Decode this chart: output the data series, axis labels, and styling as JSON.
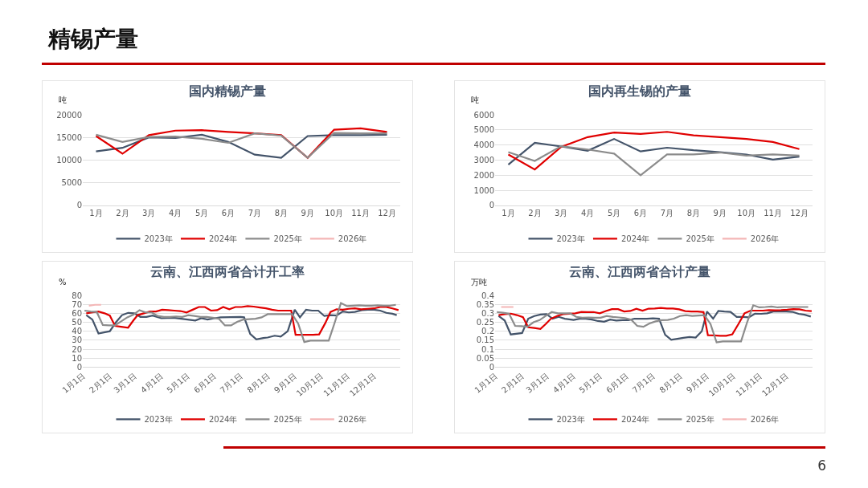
{
  "chart_data": [
    {
      "type": "line",
      "title": "国内精锡产量",
      "ylabel": "吨",
      "annotations": [
        "精锡产量"
      ],
      "categories": [
        "1月",
        "2月",
        "3月",
        "4月",
        "5月",
        "6月",
        "7月",
        "8月",
        "9月",
        "10月",
        "11月",
        "12月"
      ],
      "ylim": [
        0,
        20000
      ],
      "yticks": [
        0,
        5000,
        10000,
        15000,
        20000
      ],
      "grid": "y",
      "legend": "bottom",
      "line_style": "solid",
      "marker": "none",
      "series": [
        {
          "name": "2023年",
          "color": "#44546a",
          "values": [
            11900,
            12700,
            15000,
            14900,
            15600,
            14000,
            11200,
            10500,
            15300,
            15500,
            15500,
            15600
          ]
        },
        {
          "name": "2024年",
          "color": "#e00000",
          "values": [
            15300,
            11400,
            15500,
            16500,
            16600,
            16200,
            15900,
            15500,
            10500,
            16700,
            17000,
            16200
          ]
        },
        {
          "name": "2025年",
          "color": "#8c8c8c",
          "values": [
            15600,
            14000,
            15100,
            15200,
            14700,
            13800,
            15900,
            15400,
            10500,
            16000,
            15900,
            15900
          ]
        },
        {
          "name": "2026年",
          "color": "#f4b6b6",
          "values": [
            null,
            null,
            null,
            null,
            null,
            null,
            null,
            null,
            null,
            null,
            null,
            null
          ]
        }
      ]
    },
    {
      "type": "line",
      "title": "国内再生锡的产量",
      "ylabel": "吨",
      "categories": [
        "1月",
        "2月",
        "3月",
        "4月",
        "5月",
        "6月",
        "7月",
        "8月",
        "9月",
        "10月",
        "11月",
        "12月"
      ],
      "ylim": [
        0,
        6000
      ],
      "yticks": [
        0,
        1000,
        2000,
        3000,
        4000,
        5000,
        6000
      ],
      "grid": "y",
      "legend": "bottom",
      "line_style": "solid",
      "marker": "none",
      "series": [
        {
          "name": "2023年",
          "color": "#44546a",
          "values": [
            2700,
            4150,
            3900,
            3620,
            4400,
            3570,
            3820,
            3650,
            3520,
            3370,
            3030,
            3230
          ]
        },
        {
          "name": "2024年",
          "color": "#e00000",
          "values": [
            3370,
            2380,
            3880,
            4520,
            4820,
            4730,
            4870,
            4640,
            4520,
            4400,
            4200,
            3730
          ]
        },
        {
          "name": "2025年",
          "color": "#8c8c8c",
          "values": [
            3530,
            2940,
            3920,
            3700,
            3430,
            2000,
            3370,
            3370,
            3500,
            3300,
            3370,
            3300
          ]
        },
        {
          "name": "2026年",
          "color": "#f4b6b6",
          "values": [
            null,
            null,
            null,
            null,
            null,
            null,
            null,
            null,
            null,
            null,
            null,
            null
          ]
        }
      ]
    },
    {
      "type": "line",
      "title": "云南、江西两省合计开工率",
      "ylabel": "%",
      "xlim": [
        "--01-01",
        "--12-31"
      ],
      "xticks": [
        {
          "value": "--01-01",
          "label": "1月1日"
        },
        {
          "value": "--02-01",
          "label": "2月1日"
        },
        {
          "value": "--03-01",
          "label": "3月1日"
        },
        {
          "value": "--04-01",
          "label": "4月1日"
        },
        {
          "value": "--05-01",
          "label": "5月1日"
        },
        {
          "value": "--06-01",
          "label": "6月1日"
        },
        {
          "value": "--07-01",
          "label": "7月1日"
        },
        {
          "value": "--08-01",
          "label": "8月1日"
        },
        {
          "value": "--09-01",
          "label": "9月1日"
        },
        {
          "value": "--10-01",
          "label": "10月1日"
        },
        {
          "value": "--11-01",
          "label": "11月1日"
        },
        {
          "value": "--12-01",
          "label": "12月1日"
        }
      ],
      "ylim": [
        0,
        80
      ],
      "yticks": [
        0,
        10,
        20,
        30,
        40,
        50,
        60,
        70,
        80
      ],
      "grid": "y",
      "legend": "bottom",
      "line_style": "solid",
      "marker": "none",
      "series": [
        {
          "name": "2023年",
          "color": "#44546a",
          "x": [
            "--01-05",
            "--01-12",
            "--01-19",
            "--02-01",
            "--02-08",
            "--02-15",
            "--02-22",
            "--03-01",
            "--03-08",
            "--03-15",
            "--03-22",
            "--04-01",
            "--04-15",
            "--05-01",
            "--05-10",
            "--05-17",
            "--05-24",
            "--06-01",
            "--06-08",
            "--07-01",
            "--07-05",
            "--07-12",
            "--07-19",
            "--07-27",
            "--08-01",
            "--08-09",
            "--08-16",
            "--08-24",
            "--09-01",
            "--09-07",
            "--09-14",
            "--09-21",
            "--09-28",
            "--10-05",
            "--10-12",
            "--10-19",
            "--10-26",
            "--11-02",
            "--11-09",
            "--11-17",
            "--11-24",
            "--12-01",
            "--12-08",
            "--12-15",
            "--12-22",
            "--12-27"
          ],
          "values": [
            58,
            53,
            37.5,
            40,
            50,
            58,
            60.5,
            60,
            56,
            56,
            57.5,
            54.5,
            55,
            53,
            52,
            54.5,
            53,
            54.5,
            55.5,
            56,
            55.5,
            37,
            31,
            32.5,
            33,
            35,
            34,
            40,
            64,
            55.5,
            64,
            63,
            63,
            57,
            58,
            57.5,
            62,
            61,
            61.5,
            63.5,
            64,
            64,
            63,
            60.5,
            59.5,
            58
          ]
        },
        {
          "name": "2024年",
          "color": "#e00000",
          "x": [
            "--01-05",
            "--01-12",
            "--01-19",
            "--01-26",
            "--02-01",
            "--02-07",
            "--02-14",
            "--02-22",
            "--02-28",
            "--03-05",
            "--03-12",
            "--03-19",
            "--03-26",
            "--04-02",
            "--04-09",
            "--04-16",
            "--04-23",
            "--04-30",
            "--05-07",
            "--05-14",
            "--05-21",
            "--05-28",
            "--06-04",
            "--06-11",
            "--06-18",
            "--06-25",
            "--07-02",
            "--07-09",
            "--07-16",
            "--07-23",
            "--07-30",
            "--08-06",
            "--08-13",
            "--08-20",
            "--08-28",
            "--09-02",
            "--09-08",
            "--09-15",
            "--09-22",
            "--09-29",
            "--10-06",
            "--10-12",
            "--10-19",
            "--10-26",
            "--11-02",
            "--11-09",
            "--11-16",
            "--11-23",
            "--12-01",
            "--12-08",
            "--12-15",
            "--12-22",
            "--12-29"
          ],
          "values": [
            60,
            61,
            62,
            60,
            57.5,
            46,
            45,
            44,
            52,
            58,
            60,
            62,
            62,
            64,
            63.5,
            63,
            62.5,
            61,
            64,
            67,
            67,
            63,
            63.5,
            67,
            64.5,
            67,
            67,
            68,
            67.5,
            66.5,
            65.5,
            64,
            63,
            63,
            63,
            36,
            36,
            36,
            36,
            36.5,
            49,
            61.5,
            64.5,
            64,
            65,
            65.5,
            64.5,
            65,
            65.5,
            67,
            67,
            65.5,
            63.5
          ]
        },
        {
          "name": "2025年",
          "color": "#8c8c8c",
          "x": [
            "--01-03",
            "--01-10",
            "--01-17",
            "--01-24",
            "--01-31",
            "--02-07",
            "--02-14",
            "--02-21",
            "--02-28",
            "--03-07",
            "--03-14",
            "--03-21",
            "--03-28",
            "--04-04",
            "--04-11",
            "--04-18",
            "--04-25",
            "--05-02",
            "--05-09",
            "--05-16",
            "--05-23",
            "--05-30",
            "--06-06",
            "--06-13",
            "--06-20",
            "--06-27",
            "--07-04",
            "--07-11",
            "--07-18",
            "--07-25",
            "--08-01",
            "--08-08",
            "--08-15",
            "--08-22",
            "--08-29",
            "--09-05",
            "--09-12",
            "--09-19",
            "--09-26",
            "--10-03",
            "--10-10",
            "--10-17",
            "--10-24",
            "--10-31",
            "--11-07",
            "--11-14",
            "--11-21",
            "--11-28",
            "--12-05",
            "--12-12",
            "--12-19",
            "--12-26"
          ],
          "values": [
            63,
            62,
            61.5,
            47,
            46.5,
            46.5,
            51,
            55.5,
            58.5,
            63.5,
            61,
            61,
            57,
            56,
            56,
            56.5,
            56,
            58,
            57,
            56,
            56,
            55,
            54,
            46.5,
            46.5,
            50.5,
            53,
            53.5,
            54,
            55.5,
            59,
            59,
            59,
            59,
            59,
            48.5,
            28,
            29.5,
            29.5,
            29.5,
            29.5,
            50,
            71.5,
            68,
            68.5,
            69,
            68.5,
            68.5,
            69,
            68.5,
            68.5,
            69.5
          ]
        },
        {
          "name": "2026年",
          "color": "#f4b6b6",
          "x": [
            "--01-08",
            "--01-15",
            "--01-22"
          ],
          "values": [
            68.5,
            69.5,
            69.5
          ]
        }
      ]
    },
    {
      "type": "line",
      "title": "云南、江西两省合计产量",
      "ylabel": "万吨",
      "annotations": [
        "6"
      ],
      "xlim": [
        "--01-01",
        "--12-31"
      ],
      "xticks": [
        {
          "value": "--01-01",
          "label": "1月1日"
        },
        {
          "value": "--02-01",
          "label": "2月1日"
        },
        {
          "value": "--03-01",
          "label": "3月1日"
        },
        {
          "value": "--04-01",
          "label": "4月1日"
        },
        {
          "value": "--05-01",
          "label": "5月1日"
        },
        {
          "value": "--06-01",
          "label": "6月1日"
        },
        {
          "value": "--07-01",
          "label": "7月1日"
        },
        {
          "value": "--08-01",
          "label": "8月1日"
        },
        {
          "value": "--09-01",
          "label": "9月1日"
        },
        {
          "value": "--10-01",
          "label": "10月1日"
        },
        {
          "value": "--11-01",
          "label": "11月1日"
        },
        {
          "value": "--12-01",
          "label": "12月1日"
        }
      ],
      "ylim": [
        0,
        0.4
      ],
      "yticks": [
        0,
        0.05,
        0.1,
        0.15,
        0.2,
        0.25,
        0.3,
        0.35,
        0.4
      ],
      "grid": "y",
      "legend": "bottom",
      "line_style": "solid",
      "marker": "none",
      "series": [
        {
          "name": "2023年",
          "color": "#44546a",
          "x": [
            "--01-05",
            "--01-12",
            "--01-19",
            "--02-01",
            "--02-08",
            "--02-15",
            "--02-22",
            "--03-01",
            "--03-08",
            "--03-15",
            "--03-22",
            "--04-01",
            "--04-08",
            "--04-15",
            "--04-22",
            "--04-29",
            "--05-06",
            "--05-13",
            "--05-20",
            "--05-27",
            "--06-03",
            "--06-10",
            "--06-24",
            "--07-01",
            "--07-08",
            "--07-15",
            "--07-22",
            "--07-29",
            "--08-05",
            "--08-12",
            "--08-19",
            "--08-26",
            "--09-01",
            "--09-08",
            "--09-14",
            "--09-21",
            "--09-28",
            "--10-05",
            "--10-12",
            "--10-19",
            "--10-26",
            "--11-02",
            "--11-09",
            "--11-16",
            "--11-23",
            "--12-01",
            "--12-08",
            "--12-15",
            "--12-22",
            "--12-29"
          ],
          "values": [
            0.285,
            0.26,
            0.182,
            0.19,
            0.27,
            0.285,
            0.293,
            0.295,
            0.27,
            0.28,
            0.27,
            0.263,
            0.27,
            0.27,
            0.265,
            0.257,
            0.253,
            0.265,
            0.26,
            0.262,
            0.262,
            0.27,
            0.27,
            0.272,
            0.27,
            0.18,
            0.152,
            0.158,
            0.163,
            0.168,
            0.165,
            0.2,
            0.31,
            0.27,
            0.313,
            0.31,
            0.308,
            0.28,
            0.28,
            0.278,
            0.298,
            0.297,
            0.3,
            0.31,
            0.31,
            0.31,
            0.308,
            0.297,
            0.292,
            0.282
          ]
        },
        {
          "name": "2024年",
          "color": "#e00000",
          "x": [
            "--01-05",
            "--01-12",
            "--01-19",
            "--01-26",
            "--02-02",
            "--02-08",
            "--02-15",
            "--02-22",
            "--02-28",
            "--03-06",
            "--03-13",
            "--03-20",
            "--03-27",
            "--04-03",
            "--04-10",
            "--04-17",
            "--04-24",
            "--05-01",
            "--05-08",
            "--05-15",
            "--05-22",
            "--05-29",
            "--06-05",
            "--06-12",
            "--06-19",
            "--06-26",
            "--07-03",
            "--07-10",
            "--07-17",
            "--07-24",
            "--07-31",
            "--08-07",
            "--08-14",
            "--08-21",
            "--08-28",
            "--09-02",
            "--09-09",
            "--09-16",
            "--09-23",
            "--09-30",
            "--10-07",
            "--10-14",
            "--10-21",
            "--10-28",
            "--11-04",
            "--11-11",
            "--11-18",
            "--11-25",
            "--12-02",
            "--12-09",
            "--12-16",
            "--12-23",
            "--12-30"
          ],
          "values": [
            0.29,
            0.295,
            0.298,
            0.29,
            0.278,
            0.222,
            0.218,
            0.213,
            0.24,
            0.27,
            0.285,
            0.295,
            0.298,
            0.3,
            0.308,
            0.307,
            0.307,
            0.3,
            0.313,
            0.323,
            0.323,
            0.31,
            0.313,
            0.325,
            0.315,
            0.326,
            0.327,
            0.33,
            0.327,
            0.327,
            0.322,
            0.312,
            0.31,
            0.31,
            0.307,
            0.178,
            0.177,
            0.175,
            0.175,
            0.183,
            0.24,
            0.3,
            0.315,
            0.315,
            0.315,
            0.318,
            0.317,
            0.318,
            0.32,
            0.323,
            0.322,
            0.315,
            0.312
          ]
        },
        {
          "name": "2025年",
          "color": "#8c8c8c",
          "x": [
            "--01-03",
            "--01-10",
            "--01-17",
            "--01-24",
            "--01-31",
            "--02-07",
            "--02-14",
            "--02-21",
            "--02-28",
            "--03-07",
            "--03-14",
            "--03-21",
            "--03-28",
            "--04-04",
            "--04-11",
            "--04-18",
            "--04-25",
            "--05-02",
            "--05-09",
            "--05-16",
            "--05-23",
            "--05-30",
            "--06-06",
            "--06-13",
            "--06-20",
            "--06-27",
            "--07-04",
            "--07-11",
            "--07-18",
            "--07-25",
            "--08-01",
            "--08-08",
            "--08-15",
            "--08-22",
            "--08-29",
            "--09-05",
            "--09-12",
            "--09-19",
            "--09-26",
            "--10-03",
            "--10-10",
            "--10-17",
            "--10-24",
            "--10-31",
            "--11-07",
            "--11-14",
            "--11-21",
            "--11-28",
            "--12-05",
            "--12-12",
            "--12-19",
            "--12-26"
          ],
          "values": [
            0.307,
            0.303,
            0.298,
            0.23,
            0.228,
            0.225,
            0.25,
            0.262,
            0.285,
            0.307,
            0.3,
            0.3,
            0.3,
            0.28,
            0.275,
            0.277,
            0.275,
            0.275,
            0.285,
            0.28,
            0.277,
            0.273,
            0.265,
            0.23,
            0.225,
            0.243,
            0.255,
            0.262,
            0.263,
            0.27,
            0.285,
            0.29,
            0.285,
            0.288,
            0.29,
            0.24,
            0.138,
            0.143,
            0.143,
            0.143,
            0.143,
            0.25,
            0.345,
            0.333,
            0.335,
            0.338,
            0.333,
            0.335,
            0.335,
            0.335,
            0.335,
            0.335
          ]
        },
        {
          "name": "2026年",
          "color": "#f4b6b6",
          "x": [
            "--01-08",
            "--01-22"
          ],
          "values": [
            0.335,
            0.335
          ]
        }
      ]
    }
  ]
}
